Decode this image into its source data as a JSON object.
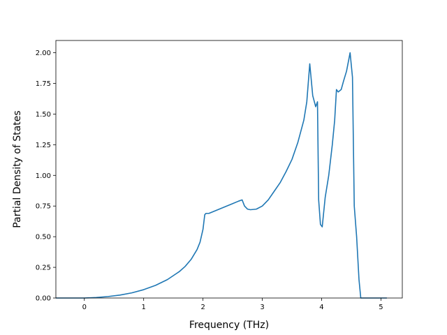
{
  "chart_data": {
    "type": "line",
    "xlabel": "Frequency (THz)",
    "ylabel": "Partial Density of States",
    "xlim": [
      -0.48,
      5.36
    ],
    "ylim": [
      0,
      2.1
    ],
    "grid": false,
    "legend": "none",
    "x_ticks": [
      {
        "value": 0,
        "label": "0"
      },
      {
        "value": 1,
        "label": "1"
      },
      {
        "value": 2,
        "label": "2"
      },
      {
        "value": 3,
        "label": "3"
      },
      {
        "value": 4,
        "label": "4"
      },
      {
        "value": 5,
        "label": "5"
      }
    ],
    "y_ticks": [
      {
        "value": 0.0,
        "label": "0.00"
      },
      {
        "value": 0.25,
        "label": "0.25"
      },
      {
        "value": 0.5,
        "label": "0.50"
      },
      {
        "value": 0.75,
        "label": "0.75"
      },
      {
        "value": 1.0,
        "label": "1.00"
      },
      {
        "value": 1.25,
        "label": "1.25"
      },
      {
        "value": 1.5,
        "label": "1.50"
      },
      {
        "value": 1.75,
        "label": "1.75"
      },
      {
        "value": 2.0,
        "label": "2.00"
      }
    ],
    "series": [
      {
        "color": "#1f77b4",
        "points": [
          [
            -0.48,
            0.0
          ],
          [
            0.0,
            0.0
          ],
          [
            0.2,
            0.004
          ],
          [
            0.4,
            0.012
          ],
          [
            0.6,
            0.024
          ],
          [
            0.8,
            0.042
          ],
          [
            1.0,
            0.068
          ],
          [
            1.2,
            0.103
          ],
          [
            1.4,
            0.15
          ],
          [
            1.6,
            0.215
          ],
          [
            1.7,
            0.258
          ],
          [
            1.8,
            0.315
          ],
          [
            1.9,
            0.395
          ],
          [
            1.95,
            0.455
          ],
          [
            2.0,
            0.56
          ],
          [
            2.03,
            0.68
          ],
          [
            2.05,
            0.69
          ],
          [
            2.1,
            0.69
          ],
          [
            2.2,
            0.71
          ],
          [
            2.3,
            0.73
          ],
          [
            2.4,
            0.75
          ],
          [
            2.5,
            0.77
          ],
          [
            2.6,
            0.79
          ],
          [
            2.66,
            0.8
          ],
          [
            2.7,
            0.75
          ],
          [
            2.75,
            0.725
          ],
          [
            2.8,
            0.72
          ],
          [
            2.9,
            0.725
          ],
          [
            3.0,
            0.75
          ],
          [
            3.1,
            0.8
          ],
          [
            3.2,
            0.87
          ],
          [
            3.3,
            0.94
          ],
          [
            3.4,
            1.03
          ],
          [
            3.5,
            1.13
          ],
          [
            3.6,
            1.27
          ],
          [
            3.7,
            1.45
          ],
          [
            3.75,
            1.6
          ],
          [
            3.8,
            1.91
          ],
          [
            3.85,
            1.65
          ],
          [
            3.9,
            1.56
          ],
          [
            3.93,
            1.6
          ],
          [
            3.95,
            0.8
          ],
          [
            3.98,
            0.6
          ],
          [
            4.01,
            0.58
          ],
          [
            4.06,
            0.82
          ],
          [
            4.12,
            1.0
          ],
          [
            4.18,
            1.25
          ],
          [
            4.22,
            1.45
          ],
          [
            4.25,
            1.7
          ],
          [
            4.28,
            1.68
          ],
          [
            4.33,
            1.7
          ],
          [
            4.37,
            1.77
          ],
          [
            4.42,
            1.85
          ],
          [
            4.48,
            2.0
          ],
          [
            4.52,
            1.8
          ],
          [
            4.55,
            0.75
          ],
          [
            4.59,
            0.5
          ],
          [
            4.63,
            0.15
          ],
          [
            4.66,
            0.0
          ],
          [
            5.1,
            0.0
          ]
        ]
      }
    ]
  }
}
